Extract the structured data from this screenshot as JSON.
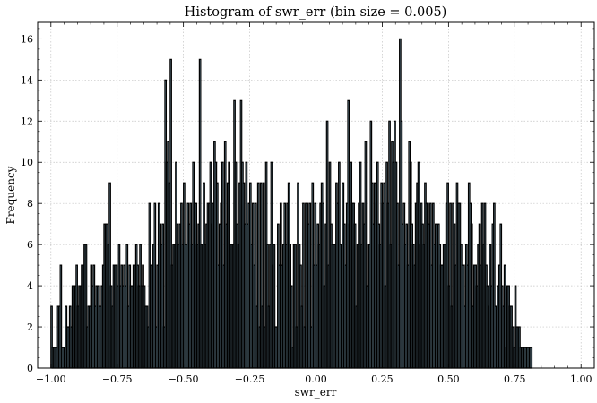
{
  "chart_data": {
    "type": "bar",
    "title": "Histogram of swr_err (bin size = 0.005)",
    "xlabel": "swr_err",
    "ylabel": "Frequency",
    "xlim": [
      -1.05,
      1.05
    ],
    "ylim": [
      0,
      16.8
    ],
    "bin_size": 0.005,
    "bin_start": -1.0,
    "grid": true,
    "bar_fill": "#9ecae1",
    "bar_edge": "#000000",
    "x_ticks": [
      -1.0,
      -0.75,
      -0.5,
      -0.25,
      0.0,
      0.25,
      0.5,
      0.75,
      1.0
    ],
    "x_tick_labels": [
      "−1.00",
      "−0.75",
      "−0.50",
      "−0.25",
      "0.00",
      "0.25",
      "0.50",
      "0.75",
      "1.00"
    ],
    "y_ticks": [
      0,
      2,
      4,
      6,
      8,
      10,
      12,
      14,
      16
    ],
    "y_tick_labels": [
      "0",
      "2",
      "4",
      "6",
      "8",
      "10",
      "12",
      "14",
      "16"
    ],
    "values": [
      3,
      1,
      1,
      1,
      1,
      3,
      3,
      5,
      1,
      1,
      1,
      3,
      2,
      2,
      3,
      2,
      4,
      4,
      4,
      5,
      3,
      4,
      4,
      5,
      5,
      6,
      6,
      2,
      3,
      3,
      5,
      4,
      5,
      3,
      4,
      4,
      3,
      3,
      4,
      5,
      7,
      7,
      7,
      6,
      9,
      4,
      3,
      5,
      5,
      5,
      4,
      6,
      4,
      5,
      4,
      5,
      4,
      6,
      3,
      5,
      4,
      4,
      5,
      5,
      6,
      5,
      4,
      6,
      4,
      5,
      4,
      3,
      3,
      2,
      8,
      5,
      5,
      6,
      8,
      2,
      5,
      8,
      7,
      6,
      7,
      2,
      14,
      10,
      11,
      9,
      15,
      5,
      6,
      6,
      10,
      7,
      6,
      7,
      8,
      6,
      9,
      6,
      6,
      8,
      7,
      8,
      6,
      10,
      8,
      8,
      6,
      7,
      15,
      6,
      6,
      9,
      6,
      7,
      8,
      8,
      10,
      7,
      8,
      11,
      10,
      9,
      5,
      7,
      8,
      10,
      5,
      11,
      7,
      9,
      10,
      6,
      6,
      6,
      13,
      10,
      7,
      6,
      9,
      13,
      10,
      9,
      7,
      10,
      7,
      8,
      9,
      6,
      8,
      5,
      8,
      3,
      9,
      2,
      9,
      3,
      9,
      2,
      10,
      6,
      3,
      6,
      10,
      5,
      6,
      2,
      2,
      7,
      5,
      8,
      5,
      6,
      8,
      6,
      8,
      9,
      6,
      4,
      1,
      6,
      6,
      2,
      9,
      6,
      5,
      3,
      8,
      2,
      8,
      8,
      7,
      8,
      2,
      9,
      5,
      8,
      5,
      7,
      6,
      8,
      9,
      8,
      4,
      7,
      12,
      5,
      10,
      7,
      6,
      6,
      6,
      9,
      8,
      10,
      6,
      6,
      9,
      7,
      5,
      8,
      13,
      7,
      10,
      8,
      8,
      7,
      3,
      6,
      8,
      10,
      6,
      8,
      7,
      11,
      4,
      6,
      6,
      12,
      9,
      7,
      9,
      8,
      10,
      7,
      6,
      9,
      8,
      9,
      4,
      10,
      8,
      12,
      6,
      11,
      10,
      12,
      10,
      8,
      5,
      16,
      12,
      7,
      8,
      6,
      7,
      5,
      11,
      10,
      7,
      6,
      5,
      8,
      9,
      10,
      6,
      8,
      7,
      6,
      9,
      8,
      8,
      7,
      8,
      5,
      8,
      6,
      7,
      6,
      7,
      6,
      5,
      5,
      6,
      6,
      8,
      9,
      4,
      8,
      3,
      8,
      7,
      5,
      9,
      8,
      8,
      6,
      5,
      5,
      3,
      6,
      5,
      9,
      8,
      7,
      3,
      5,
      5,
      4,
      6,
      7,
      5,
      8,
      6,
      8,
      5,
      4,
      3,
      6,
      4,
      7,
      8,
      3,
      2,
      4,
      5,
      7,
      4,
      3,
      5,
      1,
      4,
      4,
      3,
      3,
      2,
      1,
      4,
      2,
      2,
      2,
      1,
      1,
      1,
      1,
      1,
      1,
      1,
      1,
      1
    ]
  }
}
